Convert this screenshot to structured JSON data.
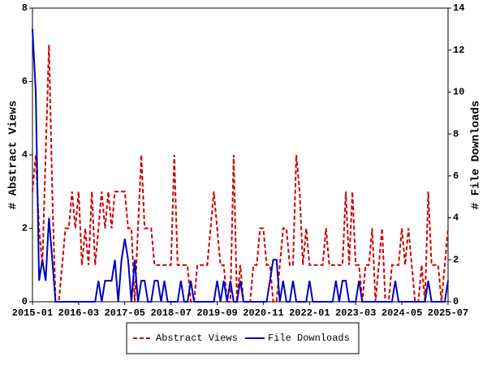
{
  "chart_data": {
    "type": "line",
    "categories": [
      "2015-01",
      null,
      null,
      null,
      null,
      null,
      null,
      null,
      null,
      null,
      null,
      null,
      null,
      null,
      "2016-03",
      null,
      null,
      null,
      null,
      null,
      null,
      null,
      null,
      null,
      null,
      null,
      null,
      null,
      "2017-05",
      null,
      null,
      null,
      null,
      null,
      null,
      null,
      null,
      null,
      null,
      null,
      null,
      null,
      "2018-07",
      null,
      null,
      null,
      null,
      null,
      null,
      null,
      null,
      null,
      null,
      null,
      null,
      null,
      "2019-09",
      null,
      null,
      null,
      null,
      null,
      null,
      null,
      null,
      null,
      null,
      null,
      null,
      null,
      "2020-11",
      null,
      null,
      null,
      null,
      null,
      null,
      null,
      null,
      null,
      null,
      null,
      null,
      null,
      "2022-01",
      null,
      null,
      null,
      null,
      null,
      null,
      null,
      null,
      null,
      null,
      null,
      null,
      null,
      "2023-03",
      null,
      null,
      null,
      null,
      null,
      null,
      null,
      null,
      null,
      null,
      null,
      null,
      null,
      "2024-05",
      null,
      null,
      null,
      null,
      null,
      null,
      null,
      null,
      null,
      null,
      null,
      null,
      null,
      "2025-07"
    ],
    "y_label": "# Abstract Views",
    "y2_label": "# File Downloads",
    "ylim": [
      0,
      8
    ],
    "yticks": [
      0,
      2,
      4,
      6,
      8
    ],
    "y2lim": [
      0,
      14
    ],
    "y2ticks": [
      0,
      2,
      4,
      6,
      8,
      10,
      12,
      14
    ],
    "series": [
      {
        "name": "Abstract Views",
        "color": "#cc0000",
        "dashed": true,
        "values": [
          3,
          4,
          2,
          1,
          4,
          7,
          3,
          0,
          0,
          1,
          2,
          2,
          3,
          2,
          3,
          1,
          2,
          1,
          3,
          1,
          2,
          3,
          2,
          3,
          2,
          3,
          3,
          3,
          3,
          2,
          2,
          0,
          2,
          4,
          2,
          2,
          2,
          1,
          1,
          1,
          1,
          1,
          1,
          4,
          1,
          1,
          1,
          1,
          0,
          0,
          1,
          1,
          1,
          1,
          2,
          3,
          2,
          1,
          1,
          0,
          0,
          4,
          0,
          1,
          0,
          0,
          0,
          1,
          1,
          2,
          2,
          1,
          1,
          0,
          0,
          1,
          2,
          2,
          1,
          1,
          4,
          3,
          1,
          2,
          1,
          1,
          1,
          1,
          1,
          2,
          1,
          1,
          1,
          1,
          1,
          3,
          1,
          3,
          1,
          1,
          0,
          1,
          1,
          2,
          0,
          1,
          2,
          0,
          0,
          1,
          1,
          1,
          2,
          1,
          2,
          1,
          0,
          0,
          1,
          0,
          3,
          1,
          1,
          1,
          0,
          1,
          2
        ]
      },
      {
        "name": "File Downloads",
        "color": "#0000bb",
        "axis": "y2",
        "values": [
          13,
          10,
          1,
          2,
          1,
          4,
          2,
          0,
          0,
          0,
          0,
          0,
          0,
          0,
          0,
          0,
          0,
          0,
          0,
          0,
          1,
          0,
          1,
          1,
          1,
          2,
          0,
          2,
          3,
          2,
          0,
          2,
          0,
          1,
          1,
          0,
          0,
          1,
          1,
          0,
          1,
          0,
          0,
          0,
          0,
          1,
          0,
          0,
          1,
          0,
          0,
          0,
          0,
          0,
          0,
          0,
          1,
          0,
          1,
          0,
          1,
          0,
          0,
          1,
          0,
          0,
          0,
          0,
          0,
          0,
          0,
          0,
          1,
          2,
          2,
          0,
          1,
          0,
          0,
          1,
          0,
          0,
          0,
          0,
          1,
          0,
          0,
          0,
          0,
          0,
          0,
          0,
          1,
          0,
          1,
          1,
          0,
          0,
          0,
          1,
          0,
          0,
          0,
          0,
          0,
          0,
          0,
          0,
          0,
          0,
          1,
          0,
          0,
          0,
          0,
          0,
          0,
          0,
          0,
          0,
          1,
          0,
          0,
          0,
          0,
          0,
          1
        ]
      }
    ]
  }
}
